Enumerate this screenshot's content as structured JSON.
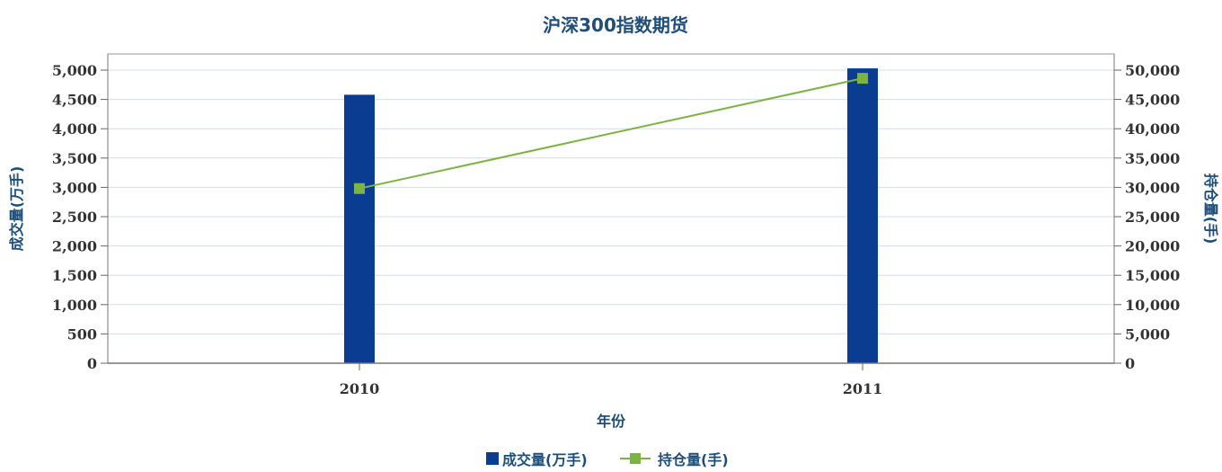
{
  "chart_data": {
    "type": "bar",
    "title": "沪深300指数期货",
    "xlabel": "年份",
    "ylabel_left": "成交量(万手)",
    "ylabel_right": "持仓量(手)",
    "categories": [
      "2010",
      "2011"
    ],
    "ylim_left": [
      0,
      5000
    ],
    "ylim_right": [
      0,
      50000
    ],
    "left_ticks": [
      "0",
      "500",
      "1,000",
      "1,500",
      "2,000",
      "2,500",
      "3,000",
      "3,500",
      "4,000",
      "4,500",
      "5,000"
    ],
    "right_ticks": [
      "0",
      "5,000",
      "10,000",
      "15,000",
      "20,000",
      "25,000",
      "30,000",
      "35,000",
      "40,000",
      "45,000",
      "50,000"
    ],
    "series": [
      {
        "name": "成交量(万手)",
        "type": "bar",
        "axis": "left",
        "values": [
          4580,
          5030
        ],
        "color": "#0a3d91"
      },
      {
        "name": "持仓量(手)",
        "type": "line",
        "axis": "right",
        "values": [
          29800,
          48600
        ],
        "color": "#7cb342"
      }
    ],
    "grid": true,
    "legend": "bottom-center"
  }
}
